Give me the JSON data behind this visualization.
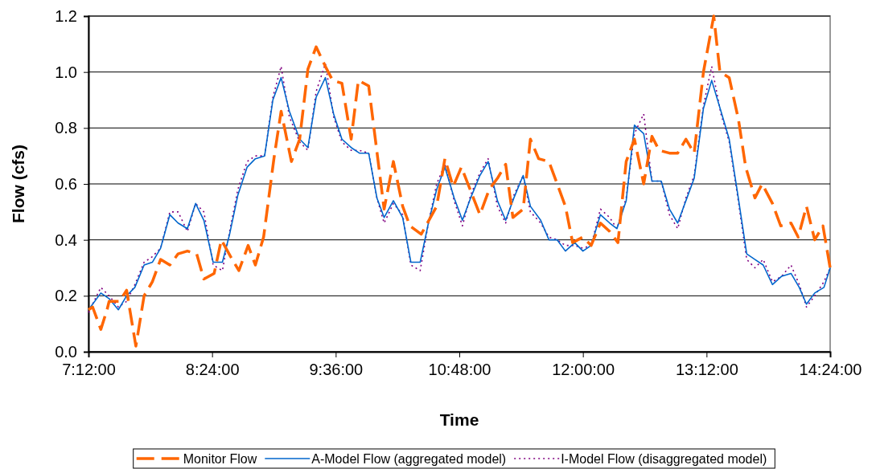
{
  "chart_data": {
    "type": "line",
    "xlabel": "Time",
    "ylabel": "Flow (cfs)",
    "xlim": [
      7.2,
      14.4
    ],
    "ylim": [
      0,
      1.2
    ],
    "xticks": [
      {
        "value": 7.2,
        "label": "7:12:00"
      },
      {
        "value": 8.4,
        "label": "8:24:00"
      },
      {
        "value": 9.6,
        "label": "9:36:00"
      },
      {
        "value": 10.8,
        "label": "10:48:00"
      },
      {
        "value": 12,
        "label": "12:00:00"
      },
      {
        "value": 13.2,
        "label": "13:12:00"
      },
      {
        "value": 14.4,
        "label": "14:24:00"
      }
    ],
    "yticks": [
      {
        "value": 0,
        "label": "0.0"
      },
      {
        "value": 0.2,
        "label": "0.2"
      },
      {
        "value": 0.4,
        "label": "0.4"
      },
      {
        "value": 0.6,
        "label": "0.6"
      },
      {
        "value": 0.8,
        "label": "0.8"
      },
      {
        "value": 1,
        "label": "1.0"
      },
      {
        "value": 1.2,
        "label": "1.2"
      }
    ],
    "grid": "y",
    "legend": "bottom",
    "series": [
      {
        "name": "Monitor Flow",
        "color": "#ff6600",
        "line_style": "dashed",
        "x": [
          7.2,
          7.24,
          7.32,
          7.38,
          7.4,
          7.5,
          7.57,
          7.66,
          7.74,
          7.82,
          7.9,
          7.99,
          8.07,
          8.16,
          8.25,
          8.32,
          8.42,
          8.49,
          8.58,
          8.66,
          8.75,
          8.82,
          8.9,
          9.0,
          9.07,
          9.17,
          9.25,
          9.33,
          9.41,
          9.5,
          9.57,
          9.66,
          9.75,
          9.82,
          9.92,
          10.07,
          10.16,
          10.25,
          10.32,
          10.43,
          10.58,
          10.66,
          10.74,
          10.82,
          11.0,
          11.09,
          11.17,
          11.25,
          11.32,
          11.42,
          11.49,
          11.57,
          11.67,
          11.83,
          11.9,
          12.0,
          12.08,
          12.17,
          12.26,
          12.34,
          12.42,
          12.5,
          12.59,
          12.67,
          12.74,
          12.84,
          12.92,
          13.0,
          13.08,
          13.17,
          13.27,
          13.33,
          13.42,
          13.51,
          13.58,
          13.67,
          13.74,
          13.84,
          13.92,
          14.02,
          14.09,
          14.17,
          14.25,
          14.33,
          14.4
        ],
        "values": [
          0.15,
          0.16,
          0.08,
          0.15,
          0.18,
          0.18,
          0.22,
          0.02,
          0.2,
          0.25,
          0.33,
          0.31,
          0.35,
          0.36,
          0.35,
          0.26,
          0.28,
          0.4,
          0.34,
          0.29,
          0.38,
          0.31,
          0.41,
          0.69,
          0.86,
          0.68,
          0.76,
          1.01,
          1.09,
          1.02,
          0.97,
          0.96,
          0.76,
          0.97,
          0.95,
          0.51,
          0.68,
          0.52,
          0.45,
          0.42,
          0.52,
          0.69,
          0.59,
          0.66,
          0.49,
          0.58,
          0.62,
          0.67,
          0.48,
          0.51,
          0.76,
          0.69,
          0.68,
          0.52,
          0.39,
          0.41,
          0.38,
          0.46,
          0.43,
          0.39,
          0.68,
          0.76,
          0.6,
          0.77,
          0.72,
          0.71,
          0.71,
          0.76,
          0.71,
          1.0,
          1.2,
          1.0,
          0.98,
          0.83,
          0.66,
          0.55,
          0.6,
          0.53,
          0.45,
          0.46,
          0.41,
          0.52,
          0.4,
          0.45,
          0.3
        ]
      },
      {
        "name": "A-Model Flow (aggregated model)",
        "color": "#0066cc",
        "line_style": "solid",
        "x": [
          7.2,
          7.32,
          7.4,
          7.49,
          7.57,
          7.65,
          7.74,
          7.82,
          7.9,
          7.99,
          8.07,
          8.16,
          8.24,
          8.32,
          8.41,
          8.5,
          8.57,
          8.65,
          8.74,
          8.82,
          8.91,
          8.99,
          9.07,
          9.15,
          9.25,
          9.33,
          9.41,
          9.5,
          9.58,
          9.66,
          9.75,
          9.83,
          9.92,
          10.0,
          10.07,
          10.16,
          10.25,
          10.33,
          10.42,
          10.5,
          10.58,
          10.66,
          10.75,
          10.83,
          10.91,
          11.0,
          11.08,
          11.17,
          11.25,
          11.33,
          11.42,
          11.49,
          11.59,
          11.67,
          11.75,
          11.83,
          11.92,
          12.0,
          12.08,
          12.17,
          12.26,
          12.33,
          12.42,
          12.5,
          12.59,
          12.67,
          12.76,
          12.84,
          12.92,
          13.0,
          13.08,
          13.17,
          13.25,
          13.34,
          13.42,
          13.5,
          13.59,
          13.67,
          13.75,
          13.84,
          13.93,
          14.02,
          14.1,
          14.17,
          14.25,
          14.34,
          14.4
        ],
        "values": [
          0.15,
          0.21,
          0.19,
          0.15,
          0.2,
          0.23,
          0.31,
          0.32,
          0.37,
          0.49,
          0.46,
          0.44,
          0.53,
          0.47,
          0.32,
          0.32,
          0.42,
          0.56,
          0.66,
          0.69,
          0.7,
          0.9,
          0.98,
          0.86,
          0.76,
          0.73,
          0.91,
          0.98,
          0.85,
          0.76,
          0.73,
          0.71,
          0.71,
          0.55,
          0.48,
          0.54,
          0.48,
          0.32,
          0.32,
          0.46,
          0.58,
          0.66,
          0.55,
          0.47,
          0.55,
          0.63,
          0.68,
          0.54,
          0.47,
          0.55,
          0.63,
          0.52,
          0.47,
          0.4,
          0.4,
          0.36,
          0.39,
          0.36,
          0.38,
          0.49,
          0.46,
          0.44,
          0.54,
          0.81,
          0.78,
          0.61,
          0.61,
          0.51,
          0.46,
          0.54,
          0.62,
          0.87,
          0.97,
          0.86,
          0.76,
          0.57,
          0.35,
          0.33,
          0.31,
          0.24,
          0.27,
          0.28,
          0.23,
          0.17,
          0.21,
          0.23,
          0.3
        ]
      },
      {
        "name": "I-Model Flow (disaggregated model)",
        "color": "#800080",
        "line_style": "dotted",
        "x": [
          7.2,
          7.32,
          7.4,
          7.49,
          7.57,
          7.65,
          7.74,
          7.82,
          7.9,
          7.99,
          8.07,
          8.16,
          8.24,
          8.32,
          8.41,
          8.5,
          8.57,
          8.65,
          8.74,
          8.82,
          8.91,
          8.99,
          9.07,
          9.15,
          9.25,
          9.33,
          9.41,
          9.5,
          9.58,
          9.66,
          9.75,
          9.83,
          9.92,
          10.0,
          10.07,
          10.16,
          10.25,
          10.33,
          10.42,
          10.5,
          10.58,
          10.66,
          10.75,
          10.83,
          10.91,
          11.0,
          11.08,
          11.17,
          11.25,
          11.33,
          11.42,
          11.49,
          11.59,
          11.67,
          11.75,
          11.83,
          11.92,
          12.0,
          12.08,
          12.17,
          12.26,
          12.33,
          12.42,
          12.5,
          12.59,
          12.67,
          12.76,
          12.84,
          12.92,
          13.0,
          13.08,
          13.17,
          13.25,
          13.34,
          13.42,
          13.5,
          13.59,
          13.67,
          13.75,
          13.84,
          13.93,
          14.02,
          14.1,
          14.17,
          14.25,
          14.34,
          14.4
        ],
        "values": [
          0.14,
          0.23,
          0.2,
          0.16,
          0.18,
          0.24,
          0.32,
          0.34,
          0.37,
          0.5,
          0.5,
          0.43,
          0.53,
          0.5,
          0.31,
          0.29,
          0.43,
          0.58,
          0.68,
          0.7,
          0.7,
          0.91,
          1.02,
          0.84,
          0.75,
          0.72,
          0.93,
          1.03,
          0.84,
          0.75,
          0.72,
          0.72,
          0.71,
          0.55,
          0.46,
          0.53,
          0.49,
          0.31,
          0.29,
          0.46,
          0.6,
          0.67,
          0.54,
          0.45,
          0.56,
          0.64,
          0.69,
          0.52,
          0.46,
          0.56,
          0.63,
          0.5,
          0.46,
          0.41,
          0.4,
          0.38,
          0.38,
          0.37,
          0.38,
          0.51,
          0.48,
          0.44,
          0.55,
          0.78,
          0.85,
          0.61,
          0.61,
          0.49,
          0.44,
          0.55,
          0.63,
          0.88,
          1.02,
          0.85,
          0.75,
          0.56,
          0.33,
          0.3,
          0.33,
          0.25,
          0.27,
          0.31,
          0.24,
          0.16,
          0.2,
          0.25,
          0.3
        ]
      }
    ]
  }
}
